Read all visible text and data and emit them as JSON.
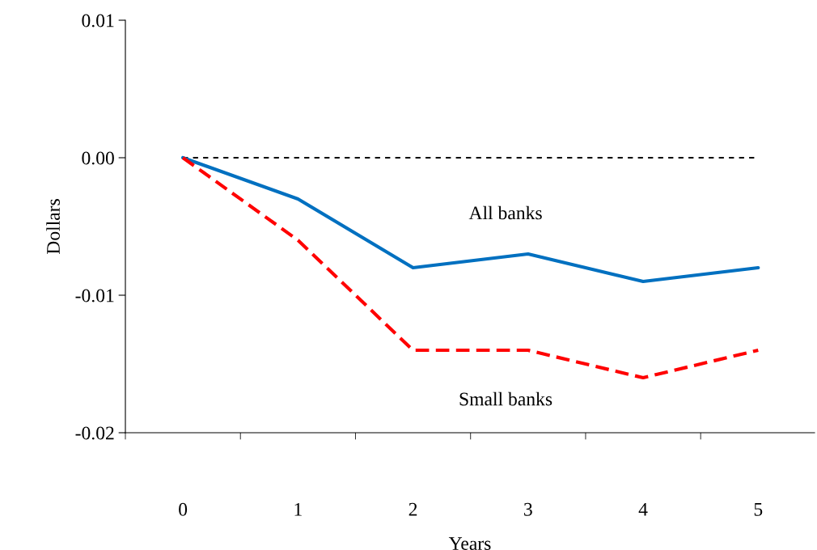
{
  "chart_data": {
    "type": "line",
    "xlabel": "Years",
    "ylabel": "Dollars",
    "categories": [
      "0",
      "1",
      "2",
      "3",
      "4",
      "5"
    ],
    "series": [
      {
        "name": "All banks",
        "color": "#0070c0",
        "line_style": "solid",
        "values": [
          0,
          -0.003,
          -0.008,
          -0.007,
          -0.009,
          -0.008
        ]
      },
      {
        "name": "Small banks",
        "color": "#ff0000",
        "line_style": "dashed",
        "values": [
          0,
          -0.006,
          -0.014,
          -0.014,
          -0.016,
          -0.014
        ]
      }
    ],
    "ylim": [
      -0.02,
      0.01
    ],
    "yticks": [
      {
        "value": -0.02,
        "label": "-0.02"
      },
      {
        "value": -0.01,
        "label": "-0.01"
      },
      {
        "value": 0,
        "label": "0.00"
      },
      {
        "value": 0.01,
        "label": "0.01"
      }
    ],
    "ref_lines": [
      {
        "axis": "y",
        "value": 0,
        "color": "#000000",
        "line_style": "dashed"
      }
    ],
    "grid": false,
    "legend": false,
    "marker": "none"
  }
}
